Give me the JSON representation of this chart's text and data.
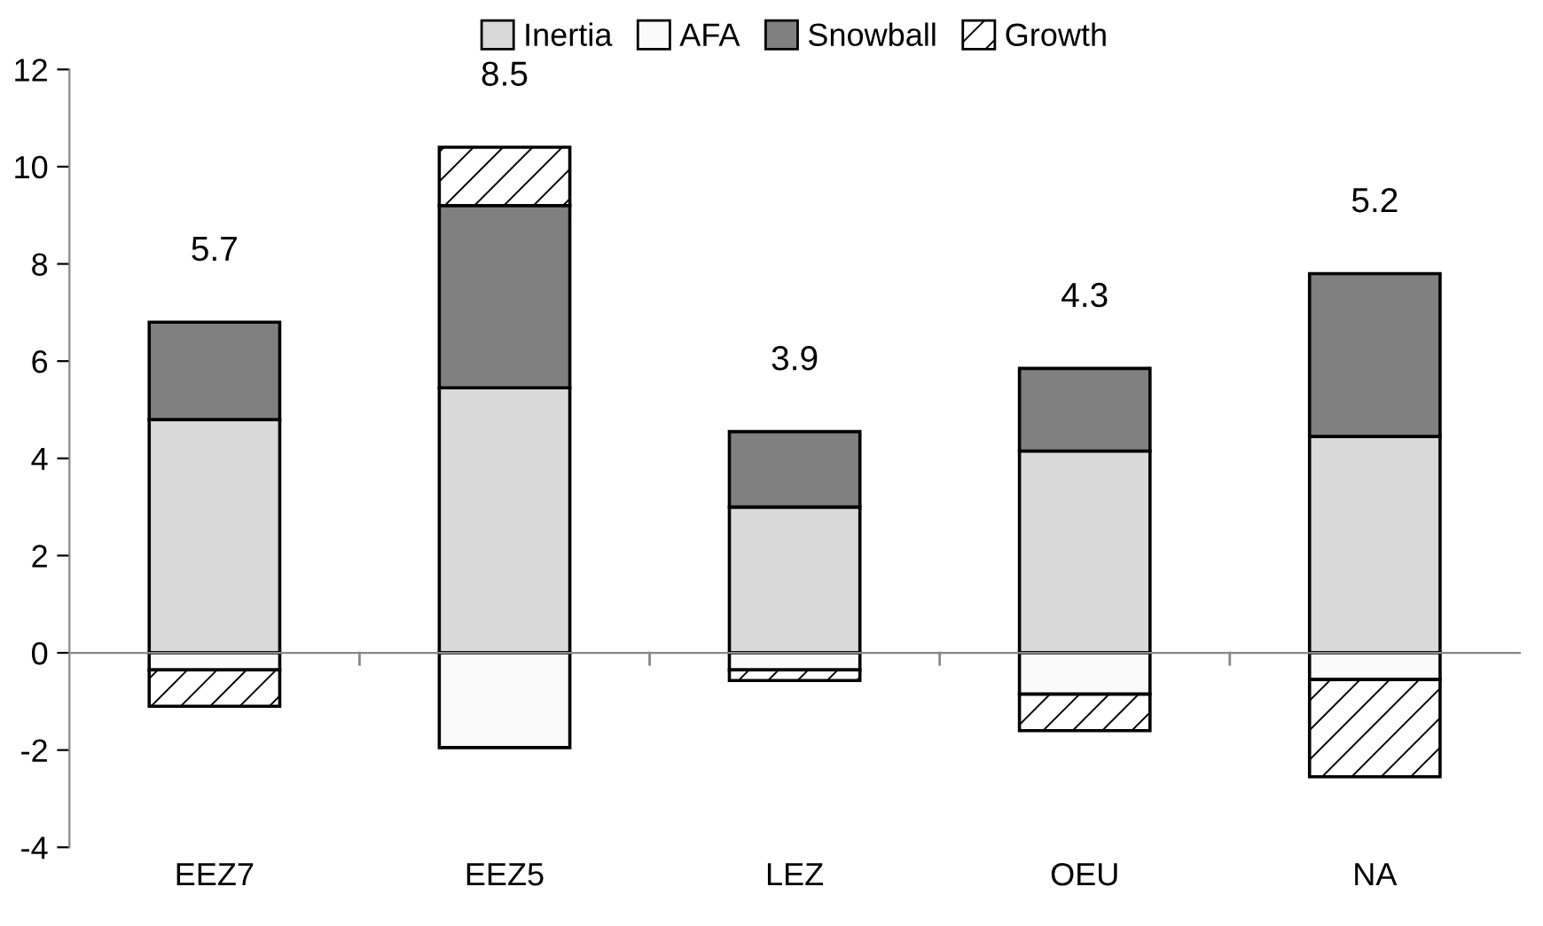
{
  "chart_data": {
    "type": "bar",
    "stacked": true,
    "categories": [
      "EEZ7",
      "EEZ5",
      "LEZ",
      "OEU",
      "NA"
    ],
    "series": [
      {
        "name": "Inertia",
        "color": "#d9d9d9",
        "values": [
          4.8,
          5.45,
          3.0,
          4.15,
          4.45
        ]
      },
      {
        "name": "AFA",
        "color": "#fafafa",
        "values": [
          -0.35,
          -1.95,
          -0.35,
          -0.85,
          -0.55
        ]
      },
      {
        "name": "Snowball",
        "color": "#808080",
        "values": [
          2.0,
          3.75,
          1.55,
          1.7,
          3.35
        ]
      },
      {
        "name": "Growth",
        "color": "#000000",
        "values": [
          -0.75,
          1.2,
          -0.22,
          -0.75,
          -2.0
        ]
      }
    ],
    "totals": [
      "5.7",
      "8.5",
      "3.9",
      "4.3",
      "5.2"
    ],
    "ylim": [
      -4,
      12
    ],
    "yticks": [
      -4,
      -2,
      0,
      2,
      4,
      6,
      8,
      10,
      12
    ],
    "legend": "top"
  }
}
